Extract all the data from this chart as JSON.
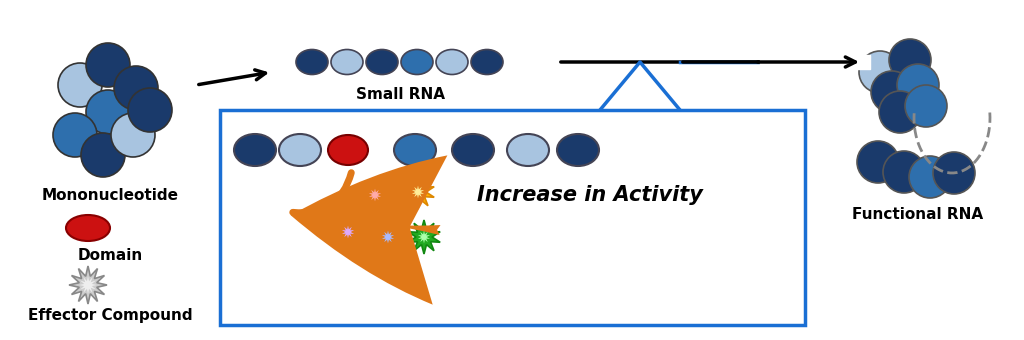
{
  "bg_color": "#ffffff",
  "dark_blue": "#1a3a6b",
  "mid_blue": "#2e6fad",
  "light_blue": "#a8c4e0",
  "red": "#cc1111",
  "orange": "#e07818",
  "box_border": "#1a6fd4",
  "mono_label": "Mononucleotide",
  "domain_label": "Domain",
  "effector_label": "Effector Compound",
  "small_rna_label": "Small RNA",
  "activity_label": "Increase in Activity",
  "func_rna_label": "Functional RNA",
  "cluster": [
    [
      80,
      255,
      "#a8c4e0"
    ],
    [
      108,
      275,
      "#1a3a6b"
    ],
    [
      108,
      228,
      "#2e6fad"
    ],
    [
      136,
      252,
      "#1a3a6b"
    ],
    [
      75,
      205,
      "#2e6fad"
    ],
    [
      103,
      185,
      "#1a3a6b"
    ],
    [
      133,
      205,
      "#a8c4e0"
    ],
    [
      150,
      230,
      "#1a3a6b"
    ]
  ],
  "small_rna_colors": [
    "#1a3a6b",
    "#a8c4e0",
    "#1a3a6b",
    "#2e6fad",
    "#a8c4e0",
    "#1a3a6b"
  ],
  "large_rna_x": [
    255,
    300,
    348,
    415,
    473,
    528,
    578
  ],
  "large_rna_cols": [
    "#1a3a6b",
    "#a8c4e0",
    "#cc1111",
    "#2e6fad",
    "#1a3a6b",
    "#a8c4e0",
    "#1a3a6b"
  ],
  "upper_chain": [
    [
      880,
      268,
      "#a8c4e0"
    ],
    [
      910,
      280,
      "#1a3a6b"
    ],
    [
      892,
      248,
      "#1a3a6b"
    ],
    [
      918,
      255,
      "#2e6fad"
    ],
    [
      900,
      228,
      "#1a3a6b"
    ],
    [
      926,
      234,
      "#2e6fad"
    ]
  ],
  "lower_chain": [
    [
      878,
      178,
      "#1a3a6b"
    ],
    [
      904,
      168,
      "#1a3a6b"
    ],
    [
      930,
      163,
      "#2e6fad"
    ],
    [
      954,
      167,
      "#1a3a6b"
    ]
  ],
  "compound_specs": [
    [
      375,
      145,
      17,
      8,
      "#dd1111",
      "#cc0000",
      "#ffaaaa"
    ],
    [
      418,
      148,
      17,
      8,
      "#ffaa00",
      "#dd8800",
      "#ffee99"
    ],
    [
      348,
      108,
      17,
      8,
      "#8822cc",
      "#661199",
      "#ddaaff"
    ],
    [
      388,
      103,
      17,
      8,
      "#1133dd",
      "#0022bb",
      "#aabbff"
    ],
    [
      424,
      103,
      17,
      8,
      "#22aa22",
      "#118811",
      "#aaffaa"
    ]
  ]
}
